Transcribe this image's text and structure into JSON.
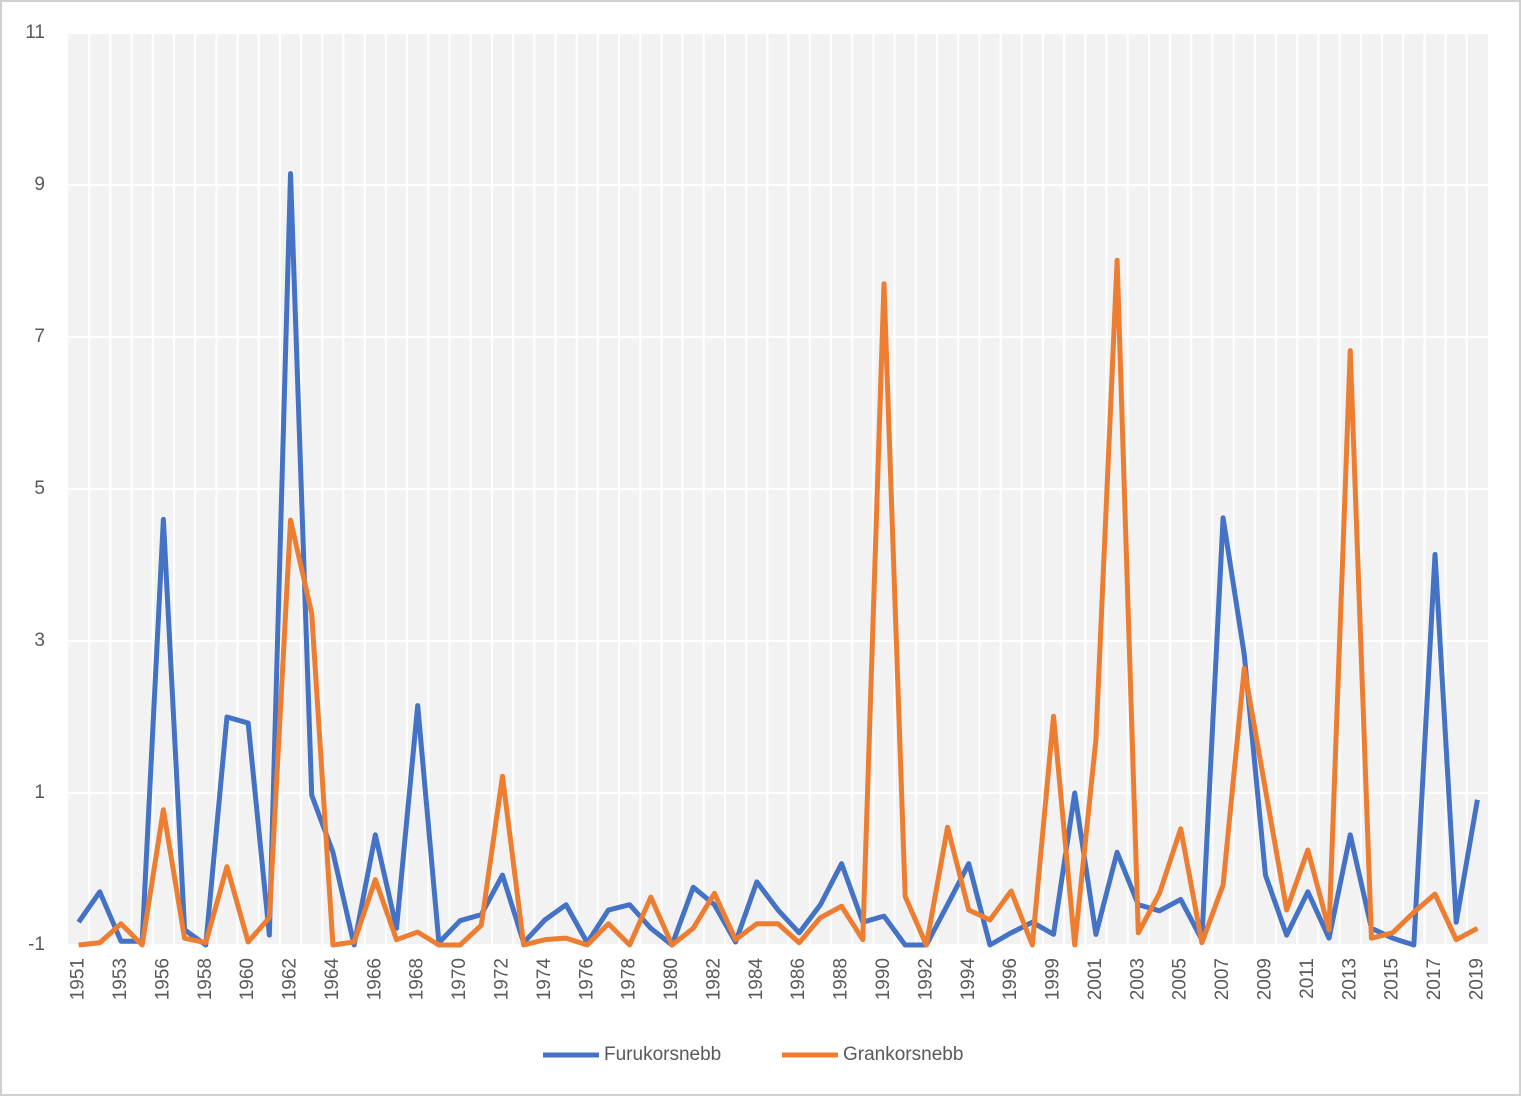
{
  "chart_data": {
    "type": "line",
    "categories": [
      "1951",
      null,
      "1953",
      null,
      "1956",
      null,
      "1958",
      null,
      "1960",
      null,
      "1962",
      null,
      "1964",
      null,
      "1966",
      null,
      "1968",
      null,
      "1970",
      null,
      "1972",
      null,
      "1974",
      null,
      "1976",
      null,
      "1978",
      null,
      "1980",
      null,
      "1982",
      null,
      "1984",
      null,
      "1986",
      null,
      "1988",
      null,
      "1990",
      null,
      "1992",
      null,
      "1994",
      null,
      "1996",
      null,
      "1999",
      null,
      "2001",
      null,
      "2003",
      null,
      "2005",
      null,
      "2007",
      null,
      "2009",
      null,
      "2011",
      null,
      "2013",
      null,
      "2015",
      null,
      "2017",
      null,
      "2019"
    ],
    "series": [
      {
        "name": "Furukorsnebb",
        "color": "#4472c4",
        "values": [
          -0.7,
          -0.3,
          -0.95,
          -0.95,
          4.6,
          -0.8,
          -1,
          2.0,
          1.92,
          -0.87,
          9.15,
          0.97,
          0.22,
          -1,
          0.45,
          -0.78,
          2.15,
          -0.97,
          -0.68,
          -0.6,
          -0.08,
          -0.97,
          -0.67,
          -0.47,
          -0.97,
          -0.54,
          -0.47,
          -0.78,
          -1,
          -0.24,
          -0.47,
          -0.96,
          -0.17,
          -0.54,
          -0.84,
          -0.47,
          0.07,
          -0.7,
          -0.62,
          -1,
          -1,
          -0.47,
          0.07,
          -1,
          -0.84,
          -0.7,
          -0.86,
          1.0,
          -0.86,
          0.22,
          -0.47,
          -0.55,
          -0.4,
          -0.93,
          4.62,
          2.82,
          -0.08,
          -0.87,
          -0.3,
          -0.91,
          0.45,
          -0.78,
          -0.91,
          -1,
          4.14,
          -0.7,
          0.91
        ]
      },
      {
        "name": "Grankorsnebb",
        "color": "#ed7d31",
        "values": [
          -1,
          -0.97,
          -0.72,
          -1,
          0.78,
          -0.91,
          -0.97,
          0.03,
          -0.96,
          -0.64,
          4.59,
          3.36,
          -1,
          -0.96,
          -0.14,
          -0.93,
          -0.83,
          -1,
          -1,
          -0.74,
          1.22,
          -1,
          -0.93,
          -0.91,
          -1,
          -0.72,
          -1,
          -0.37,
          -1,
          -0.78,
          -0.32,
          -0.93,
          -0.72,
          -0.72,
          -0.97,
          -0.64,
          -0.49,
          -0.93,
          7.7,
          -0.36,
          -1,
          0.55,
          -0.54,
          -0.67,
          -0.29,
          -1,
          2.01,
          -1,
          1.7,
          8.01,
          -0.84,
          -0.32,
          0.53,
          -0.97,
          -0.21,
          2.64,
          1.04,
          -0.54,
          0.25,
          -0.8,
          6.82,
          -0.91,
          -0.84,
          -0.57,
          -0.33,
          -0.93,
          -0.78
        ]
      }
    ],
    "ylim": [
      -1,
      11
    ],
    "yticks": [
      -1,
      1,
      3,
      5,
      7,
      9,
      11
    ],
    "grid": true,
    "legend": "bottom"
  }
}
